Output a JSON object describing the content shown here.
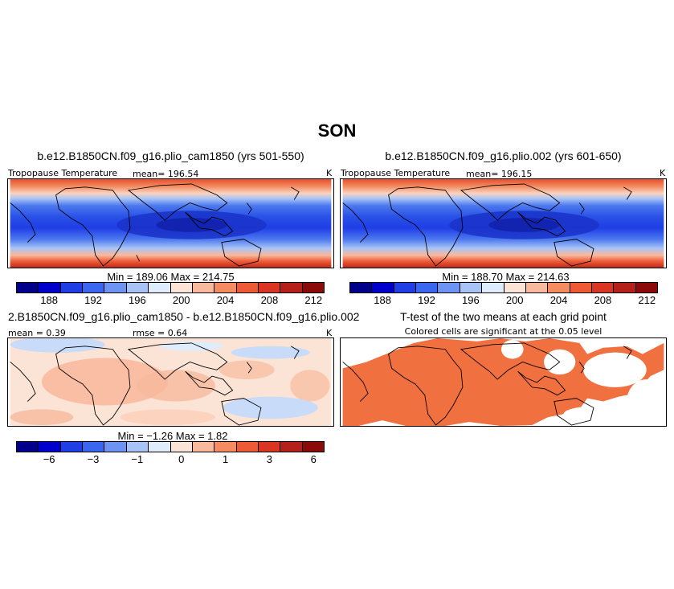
{
  "figure": {
    "season": "SON",
    "colors": {
      "warm_fill": "#f07040",
      "border": "#000000"
    }
  },
  "chart_data": [
    {
      "type": "heatmap",
      "title": "b.e12.B1850CN.f09_g16.plio_cam1850 (yrs 501-550)",
      "variable": "Tropopause Temperature",
      "units": "K",
      "mean_label": "mean= 196.54",
      "min_max_label": "Min = 189.06 Max = 214.75",
      "min": 189.06,
      "max": 214.75,
      "colorbar": {
        "colors": [
          "#00008b",
          "#0000cd",
          "#1f3ee6",
          "#3b66f0",
          "#6d93f3",
          "#a8c4f7",
          "#dfecfb",
          "#fbe3d6",
          "#f8b99d",
          "#f48b61",
          "#ee5a35",
          "#d93522",
          "#b3211a",
          "#8b0a0a"
        ],
        "ticks": [
          "188",
          "192",
          "196",
          "200",
          "204",
          "208",
          "212"
        ]
      }
    },
    {
      "type": "heatmap",
      "title": "b.e12.B1850CN.f09_g16.plio.002 (yrs 601-650)",
      "variable": "Tropopause Temperature",
      "units": "K",
      "mean_label": "mean= 196.15",
      "min_max_label": "Min = 188.70 Max = 214.63",
      "min": 188.7,
      "max": 214.63,
      "colorbar": {
        "colors": [
          "#00008b",
          "#0000cd",
          "#1f3ee6",
          "#3b66f0",
          "#6d93f3",
          "#a8c4f7",
          "#dfecfb",
          "#fbe3d6",
          "#f8b99d",
          "#f48b61",
          "#ee5a35",
          "#d93522",
          "#b3211a",
          "#8b0a0a"
        ],
        "ticks": [
          "188",
          "192",
          "196",
          "200",
          "204",
          "208",
          "212"
        ]
      }
    },
    {
      "type": "heatmap",
      "title": "2.B1850CN.f09_g16.plio_cam1850 - b.e12.B1850CN.f09_g16.plio.002",
      "units": "K",
      "mean_label": "mean = 0.39",
      "rmse_label": "rmse = 0.64",
      "min_max_label": "Min = −1.26 Max = 1.82",
      "min": -1.26,
      "max": 1.82,
      "colorbar": {
        "colors": [
          "#00008b",
          "#0000cd",
          "#1f3ee6",
          "#3b66f0",
          "#6d93f3",
          "#a8c4f7",
          "#dfecfb",
          "#fbe3d6",
          "#f8b99d",
          "#f48b61",
          "#ee5a35",
          "#d93522",
          "#b3211a",
          "#8b0a0a"
        ],
        "ticks": [
          "−6",
          "−3",
          "−1",
          "0",
          "1",
          "3",
          "6"
        ]
      }
    },
    {
      "type": "heatmap",
      "title": "T-test of the two means at each grid point",
      "subtitle": "Colored cells are significant at the 0.05 level"
    }
  ]
}
